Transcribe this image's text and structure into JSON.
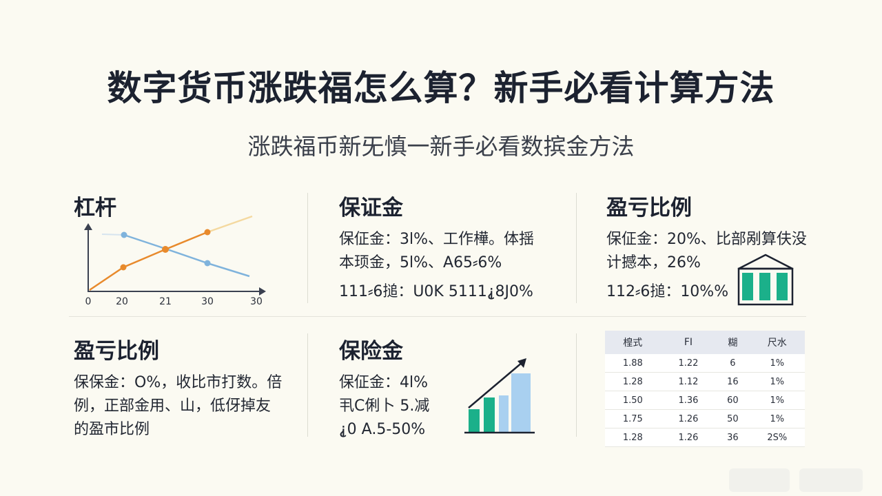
{
  "title": "数字货币涨跌福怎么算？新手必看计算方法",
  "subtitle": "涨跌福币新旡慎一新手必看数摈金方法",
  "panels": {
    "leverage": {
      "title": "杠杆",
      "x_ticks": [
        "0",
        "20",
        "21",
        "30",
        "30"
      ]
    },
    "margin": {
      "title": "保证金",
      "line1": "保佂金：3l%、工作樺。体揺",
      "line2": "本顼金，5l%、A65⸗6%",
      "line3": "111⸗6搥：U0K 5111⸘8J0%"
    },
    "pnl_top": {
      "title": "盈亏比例",
      "line1": "保佂金：20%、比部剐算伕没",
      "line2": "计撼本，26%",
      "line3": "112⸗6搥：10%%"
    },
    "pnl_bottom": {
      "title": "盈亏比例",
      "line1": "保保金：O%，收比市打数。倍",
      "line2": "例，正部金用、山，低伢掉友",
      "line3": "的盈市比例"
    },
    "insurance": {
      "title": "保险金",
      "line1": "保佂金：4l%",
      "line2": "丮C俐卜 5.减",
      "line3": "⸘0 A.5-50%"
    }
  },
  "table": {
    "headers": [
      "楻式",
      "FI",
      "糊",
      "尺水"
    ],
    "rows": [
      [
        "1.88",
        "1.22",
        "6",
        "1%"
      ],
      [
        "1.28",
        "1.12",
        "16",
        "1%"
      ],
      [
        "1.50",
        "1.36",
        "60",
        "1%"
      ],
      [
        "1.75",
        "1.26",
        "50",
        "1%"
      ],
      [
        "1.28",
        "1.26",
        "36",
        "2S%"
      ]
    ]
  },
  "colors": {
    "orange": "#e88a2c",
    "blue": "#7fb3dc",
    "green": "#1bb08a",
    "light_blue": "#a9d0f0",
    "dark": "#1c2230"
  },
  "icons": [
    "house-chart-icon",
    "growth-bar-chart-icon",
    "line-chart-icon"
  ]
}
